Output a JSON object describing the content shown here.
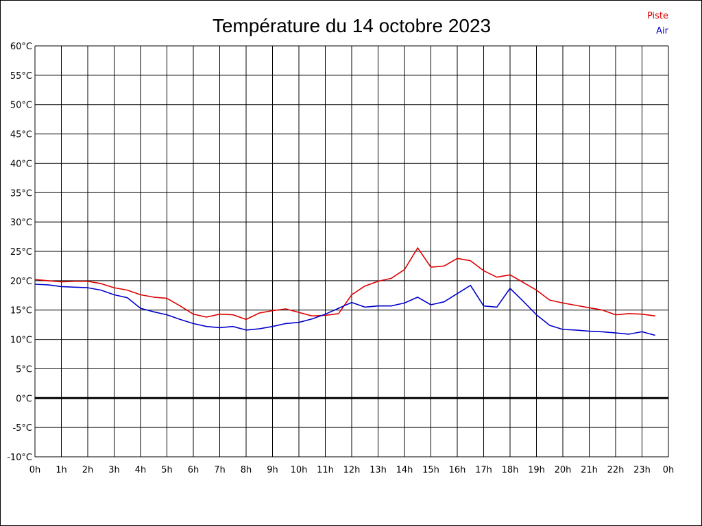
{
  "chart_data": {
    "type": "line",
    "title": "Température du 14 octobre 2023",
    "xlabel": "",
    "ylabel": "",
    "xlim": [
      0,
      24
    ],
    "ylim": [
      -10,
      60
    ],
    "grid": true,
    "legend_position": "top-right",
    "zero_line": true,
    "x_ticks": [
      0,
      1,
      2,
      3,
      4,
      5,
      6,
      7,
      8,
      9,
      10,
      11,
      12,
      13,
      14,
      15,
      16,
      17,
      18,
      19,
      20,
      21,
      22,
      23,
      24
    ],
    "x_tick_labels": [
      "0h",
      "1h",
      "2h",
      "3h",
      "4h",
      "5h",
      "6h",
      "7h",
      "8h",
      "9h",
      "10h",
      "11h",
      "12h",
      "13h",
      "14h",
      "15h",
      "16h",
      "17h",
      "18h",
      "19h",
      "20h",
      "21h",
      "22h",
      "23h",
      "0h"
    ],
    "y_ticks": [
      -10,
      -5,
      0,
      5,
      10,
      15,
      20,
      25,
      30,
      35,
      40,
      45,
      50,
      55,
      60
    ],
    "y_tick_labels": [
      "-10°C",
      "-5°C",
      "0°C",
      "5°C",
      "10°C",
      "15°C",
      "20°C",
      "25°C",
      "30°C",
      "35°C",
      "40°C",
      "45°C",
      "50°C",
      "55°C",
      "60°C"
    ],
    "x": [
      0,
      0.5,
      1,
      1.5,
      2,
      2.5,
      3,
      3.5,
      4,
      4.5,
      5,
      5.5,
      6,
      6.5,
      7,
      7.5,
      8,
      8.5,
      9,
      9.5,
      10,
      10.5,
      11,
      11.5,
      12,
      12.5,
      13,
      13.5,
      14,
      14.5,
      15,
      15.5,
      16,
      16.5,
      17,
      17.5,
      18,
      18.5,
      19,
      19.5,
      20,
      20.5,
      21,
      21.5,
      22,
      22.5,
      23,
      23.5
    ],
    "series": [
      {
        "name": "Piste",
        "color": "#dd0000",
        "values": [
          20.2,
          20.0,
          19.8,
          19.9,
          19.9,
          19.5,
          18.8,
          18.4,
          17.6,
          17.2,
          17.0,
          15.7,
          14.3,
          13.8,
          14.3,
          14.2,
          13.4,
          14.5,
          14.9,
          15.2,
          14.6,
          14.0,
          14.1,
          14.4,
          17.6,
          19.1,
          19.9,
          20.4,
          21.9,
          25.6,
          22.3,
          22.5,
          23.8,
          23.4,
          21.7,
          20.6,
          21.0,
          19.7,
          18.4,
          16.7,
          16.2,
          15.8,
          15.4,
          15.0,
          14.2,
          14.4,
          14.3,
          14.0
        ]
      },
      {
        "name": "Air",
        "color": "#0000cc",
        "values": [
          19.4,
          19.3,
          19.0,
          18.9,
          18.8,
          18.4,
          17.6,
          17.1,
          15.3,
          14.7,
          14.2,
          13.4,
          12.7,
          12.2,
          12.0,
          12.2,
          11.6,
          11.8,
          12.2,
          12.7,
          12.9,
          13.5,
          14.3,
          15.3,
          16.3,
          15.5,
          15.7,
          15.7,
          16.2,
          17.2,
          15.9,
          16.4,
          17.8,
          19.2,
          15.7,
          15.5,
          18.7,
          16.5,
          14.2,
          12.4,
          11.7,
          11.6,
          11.4,
          11.3,
          11.1,
          10.9,
          11.3,
          10.7
        ]
      }
    ]
  }
}
